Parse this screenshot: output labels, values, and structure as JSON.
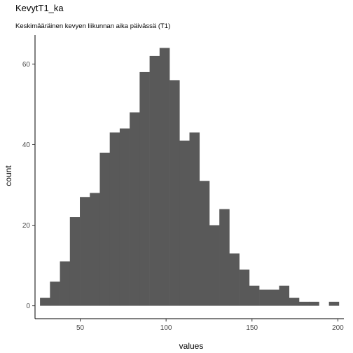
{
  "chart_data": {
    "type": "bar",
    "title": "KevytT1_ka",
    "subtitle": "Keskimääräinen kevyen liikunnan aika päivässä (T1)",
    "xlabel": "values",
    "ylabel": "count",
    "bin_width": 5.8,
    "bins": [
      {
        "start": 26.6,
        "count": 2
      },
      {
        "start": 32.4,
        "count": 6
      },
      {
        "start": 38.2,
        "count": 11
      },
      {
        "start": 44.0,
        "count": 22
      },
      {
        "start": 49.8,
        "count": 27
      },
      {
        "start": 55.6,
        "count": 28
      },
      {
        "start": 61.4,
        "count": 38
      },
      {
        "start": 67.2,
        "count": 43
      },
      {
        "start": 73.0,
        "count": 44
      },
      {
        "start": 78.8,
        "count": 48
      },
      {
        "start": 84.6,
        "count": 58
      },
      {
        "start": 90.4,
        "count": 62
      },
      {
        "start": 96.2,
        "count": 64
      },
      {
        "start": 102.0,
        "count": 56
      },
      {
        "start": 107.8,
        "count": 41
      },
      {
        "start": 113.6,
        "count": 43
      },
      {
        "start": 119.4,
        "count": 31
      },
      {
        "start": 125.2,
        "count": 20
      },
      {
        "start": 131.0,
        "count": 24
      },
      {
        "start": 136.8,
        "count": 13
      },
      {
        "start": 142.6,
        "count": 9
      },
      {
        "start": 148.4,
        "count": 5
      },
      {
        "start": 154.2,
        "count": 4
      },
      {
        "start": 160.0,
        "count": 4
      },
      {
        "start": 165.8,
        "count": 5
      },
      {
        "start": 171.6,
        "count": 2
      },
      {
        "start": 177.4,
        "count": 1
      },
      {
        "start": 183.2,
        "count": 1
      },
      {
        "start": 189.0,
        "count": 0
      },
      {
        "start": 194.8,
        "count": 1
      }
    ],
    "xlim": [
      23.7,
      203.5
    ],
    "ylim": [
      -3.2,
      67.2
    ],
    "x_ticks": [
      50,
      100,
      150,
      200
    ],
    "y_ticks": [
      0,
      20,
      40,
      60
    ],
    "bar_color": "#595959",
    "grid": false
  }
}
